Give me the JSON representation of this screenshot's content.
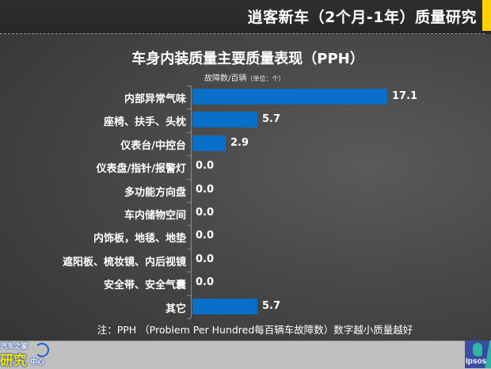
{
  "header": {
    "title": "逍客新车（2个月-1年）质量研究",
    "accent_color": "#ffd200"
  },
  "chart": {
    "title": "车身内装质量主要质量表现（PPH）",
    "subtitle": "故障数/百辆",
    "unit_note": "（单位：个）",
    "bar_color": "#0a6fc8",
    "rows": [
      {
        "label": "内部异常气味",
        "value": "17.1"
      },
      {
        "label": "座椅、扶手、头枕",
        "value": "5.7"
      },
      {
        "label": "仪表台/中控台",
        "value": "2.9"
      },
      {
        "label": "仪表盘/指针/报警灯",
        "value": "0.0"
      },
      {
        "label": "多功能方向盘",
        "value": "0.0"
      },
      {
        "label": "车内储物空间",
        "value": "0.0"
      },
      {
        "label": "内饰板，地毯、地垫",
        "value": "0.0"
      },
      {
        "label": "遮阳板、梳妆镜、内后视镜",
        "value": "0.0"
      },
      {
        "label": "安全带、安全气囊",
        "value": "0.0"
      },
      {
        "label": "其它",
        "value": "5.7"
      }
    ]
  },
  "footnote": "注：PPH （Problem Per Hundred每百辆车故障数）数字越小质量越好",
  "footer": {
    "left_logo": {
      "line1": "汽车之家",
      "line2": "研究",
      "line3": "中心"
    },
    "right_logo": {
      "word": "Ipsos"
    }
  },
  "chart_data": {
    "type": "bar",
    "orientation": "horizontal",
    "title": "车身内装质量主要质量表现（PPH）",
    "subtitle": "故障数/百辆（单位：个）",
    "categories": [
      "内部异常气味",
      "座椅、扶手、头枕",
      "仪表台/中控台",
      "仪表盘/指针/报警灯",
      "多功能方向盘",
      "车内储物空间",
      "内饰板，地毯、地垫",
      "遮阳板、梳妆镜、内后视镜",
      "安全带、安全气囊",
      "其它"
    ],
    "values": [
      17.1,
      5.7,
      2.9,
      0.0,
      0.0,
      0.0,
      0.0,
      0.0,
      0.0,
      5.7
    ],
    "xlabel": "",
    "ylabel": "",
    "data_labels": true,
    "grid": false,
    "legend": "none",
    "note": "注：PPH （Problem Per Hundred每百辆车故障数）数字越小质量越好"
  }
}
